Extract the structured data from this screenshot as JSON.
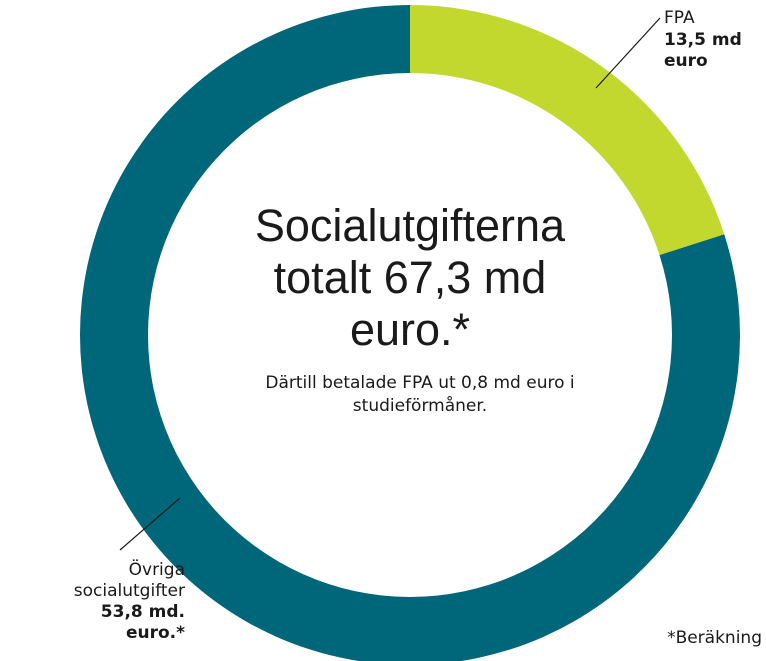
{
  "chart_data": {
    "type": "donut",
    "title": "Socialutgifterna totalt 67,3 md euro.*",
    "subtitle": "Därtill betalade FPA ut 0,8 md euro i studieförmåner.",
    "categories": [
      "FPA",
      "Övriga socialutgifter"
    ],
    "values": [
      13.5,
      53.8
    ],
    "value_labels": [
      "13,5 md euro",
      "53,8 md. euro.*"
    ],
    "colors": [
      "#c3d82e",
      "#00667a"
    ],
    "footnote": "*Beräkning"
  }
}
